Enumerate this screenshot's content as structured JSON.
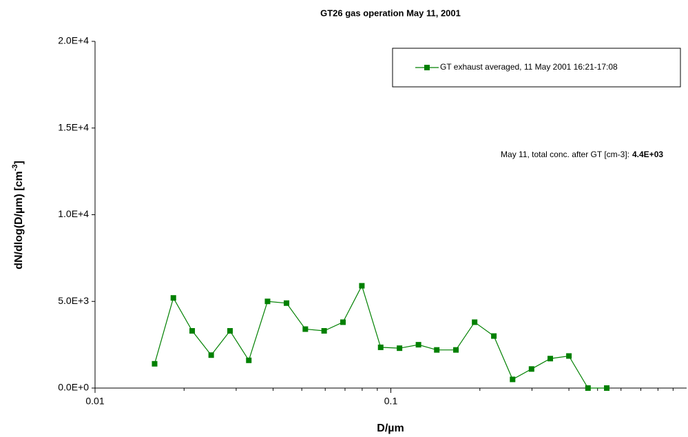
{
  "chart_data": {
    "type": "line",
    "title": "GT26 gas operation May 11, 2001",
    "x_label": "D/µm",
    "y_label": {
      "text": "dN/dlog(D/µm) [cm",
      "sup": "-3",
      "end": "]"
    },
    "xscale": "log",
    "xlim": [
      0.01,
      1
    ],
    "xticks": [
      0.01,
      0.1
    ],
    "xminorticks": [
      0.02,
      0.03,
      0.04,
      0.05,
      0.06,
      0.07,
      0.08,
      0.09,
      0.2,
      0.3,
      0.4,
      0.5,
      0.6,
      0.7,
      0.8,
      0.9
    ],
    "ylim": [
      0,
      20000
    ],
    "yticks": [
      {
        "value": 0,
        "label": "0.0E+0"
      },
      {
        "value": 5000,
        "label": "5.0E+3"
      },
      {
        "value": 10000,
        "label": "1.0E+4"
      },
      {
        "value": 15000,
        "label": "1.5E+4"
      },
      {
        "value": 20000,
        "label": "2.0E+4"
      }
    ],
    "grid": false,
    "legend": "upper right",
    "x": [
      0.0159,
      0.0184,
      0.0213,
      0.0247,
      0.0286,
      0.0331,
      0.0383,
      0.0444,
      0.0514,
      0.0595,
      0.0689,
      0.0798,
      0.0924,
      0.107,
      0.124,
      0.143,
      0.166,
      0.192,
      0.223,
      0.258,
      0.299,
      0.346,
      0.4,
      0.464,
      0.537
    ],
    "series": [
      {
        "name": "GT exhaust averaged, 11 May 2001 16:21-17:08",
        "color": "#008000",
        "values": [
          1400,
          5200,
          3300,
          1900,
          3300,
          1600,
          5000,
          4900,
          3400,
          3300,
          3800,
          5900,
          2350,
          2300,
          2500,
          2200,
          2200,
          3800,
          3000,
          500,
          1100,
          1700,
          1850,
          0,
          0
        ]
      }
    ],
    "annotation": {
      "text": "May 11, total conc. after GT [cm-3]:",
      "value_text": "4.4E+03"
    }
  }
}
